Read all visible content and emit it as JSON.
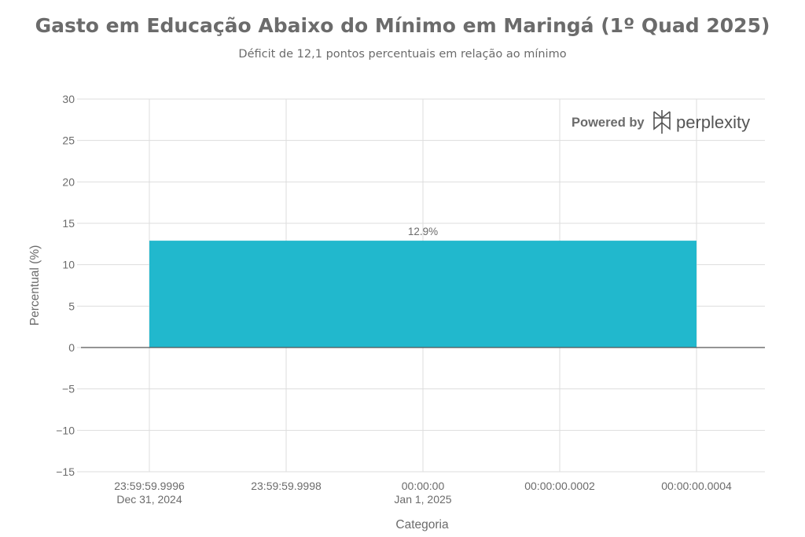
{
  "chart_data": {
    "type": "bar",
    "title": "Gasto em Educação Abaixo do Mínimo em Maringá (1º Quad 2025)",
    "subtitle": "Déficit de 12,1 pontos percentuais em relação ao mínimo",
    "xlabel": "Categoria",
    "ylabel": "Percentual (%)",
    "ylim": [
      -15,
      30
    ],
    "y_ticks": [
      30,
      25,
      20,
      15,
      10,
      5,
      0,
      -5,
      -10,
      -15
    ],
    "y_tick_labels": [
      "30",
      "25",
      "20",
      "15",
      "10",
      "5",
      "0",
      "−5",
      "−10",
      "−15"
    ],
    "x_ticks": [
      {
        "pos": 0,
        "line1": "23:59:59.9996",
        "line2": "Dec 31, 2024"
      },
      {
        "pos": 1,
        "line1": "23:59:59.9998",
        "line2": ""
      },
      {
        "pos": 2,
        "line1": "00:00:00",
        "line2": "Jan 1, 2025"
      },
      {
        "pos": 3,
        "line1": "00:00:00.0002",
        "line2": ""
      },
      {
        "pos": 4,
        "line1": "00:00:00.0004",
        "line2": ""
      }
    ],
    "xlim": [
      -0.5,
      4.5
    ],
    "bars": [
      {
        "x_start": 0,
        "x_end": 4,
        "value": 12.9,
        "label": "12.9%",
        "color": "#21b8cd"
      }
    ],
    "grid": true
  },
  "watermark": {
    "powered_by": "Powered by",
    "brand": "perplexity",
    "icon": "perplexity-logo-icon"
  },
  "colors": {
    "text": "#6b6b6b",
    "grid": "#dddddd",
    "zero_line": "#555555",
    "bar": "#21b8cd"
  }
}
